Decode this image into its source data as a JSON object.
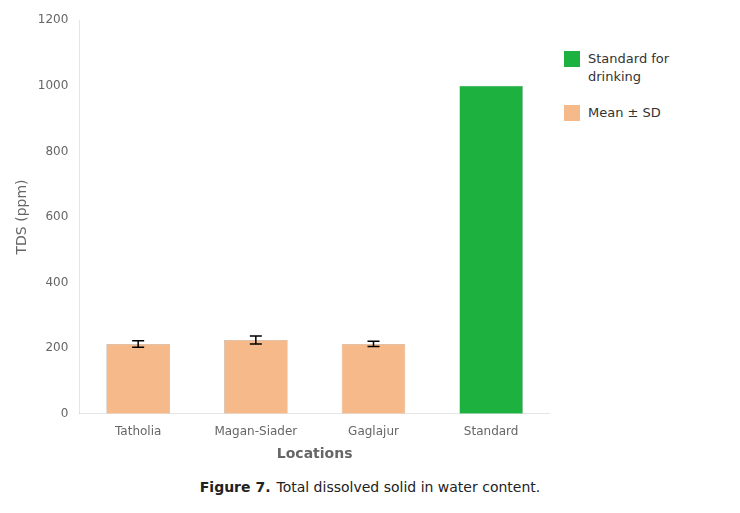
{
  "chart_data": {
    "type": "bar",
    "xlabel": "Locations",
    "ylabel": "TDS (ppm)",
    "categories": [
      "Tatholia",
      "Magan-Siader",
      "Gaglajur",
      "Standard"
    ],
    "series": [
      {
        "name": "Standard for\ndrinking",
        "color": "#1DB240",
        "values": [
          null,
          null,
          null,
          1000
        ]
      },
      {
        "name": "Mean ± SD",
        "color": "#F5B98A",
        "values": [
          213,
          225,
          213,
          null
        ],
        "errors": [
          10,
          12,
          8,
          null
        ]
      }
    ],
    "ylim": [
      0,
      1200
    ],
    "yticks": [
      0,
      200,
      400,
      600,
      800,
      1000,
      1200
    ],
    "grid": false,
    "legend": "right",
    "annotations": [
      "Figure 7.",
      "Total dissolved solid in water content."
    ]
  }
}
